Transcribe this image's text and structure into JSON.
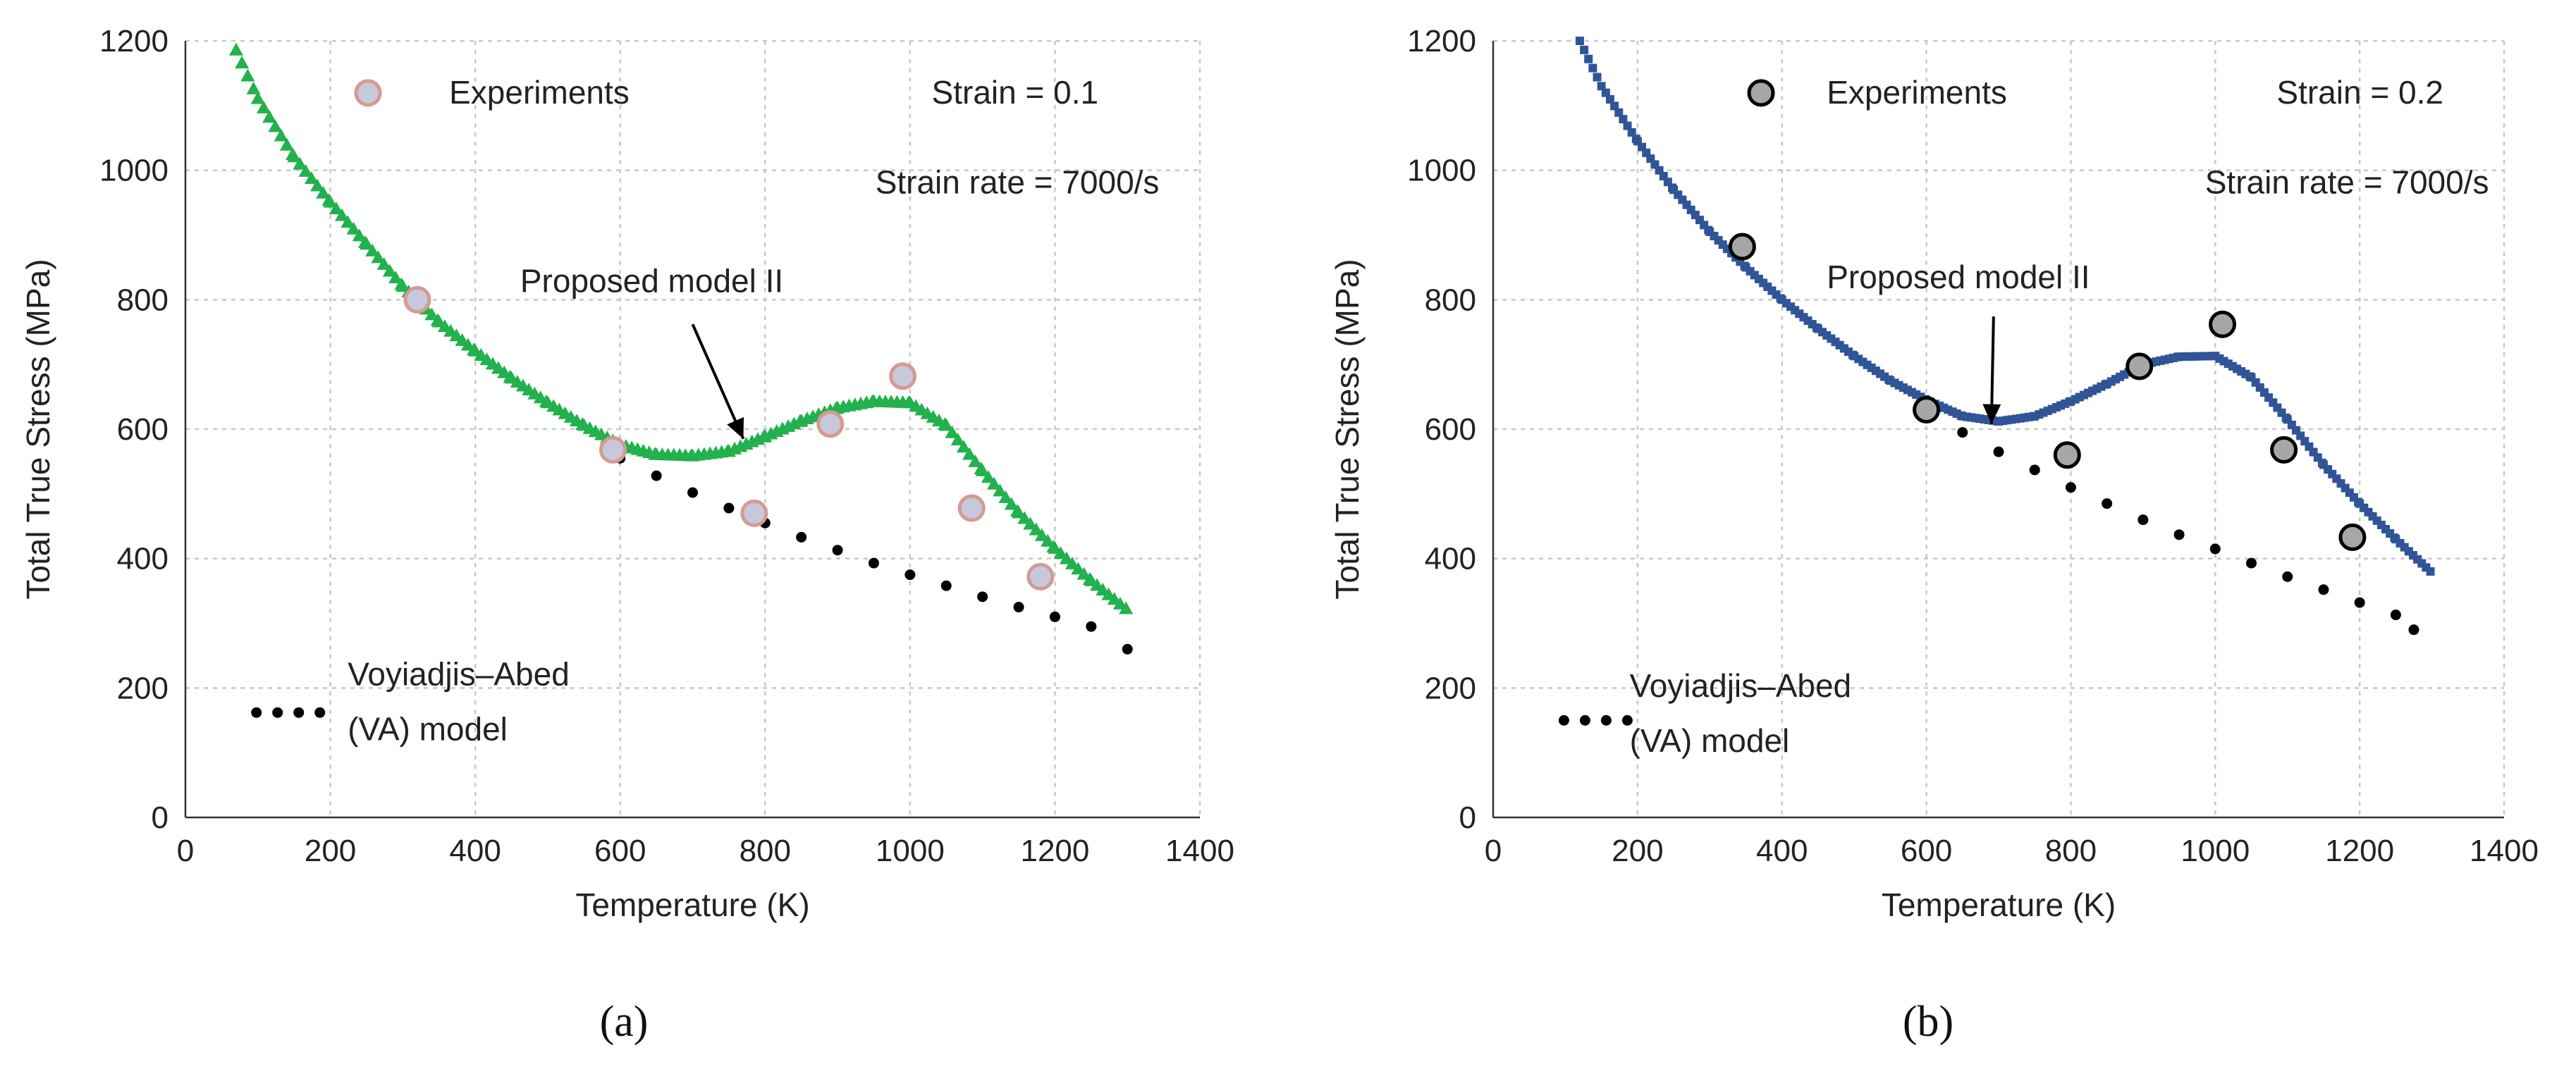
{
  "chart_data": [
    {
      "type": "scatter",
      "panel_label": "(a)",
      "xlabel": "Temperature (K)",
      "ylabel": "Total True Stress (MPa)",
      "xlim": [
        0,
        1400
      ],
      "ylim": [
        0,
        1200
      ],
      "x_ticks": [
        "0",
        "200",
        "400",
        "600",
        "800",
        "1000",
        "1200",
        "1400"
      ],
      "y_ticks": [
        "0",
        "200",
        "400",
        "600",
        "800",
        "1000",
        "1200"
      ],
      "grid": true,
      "annotations": {
        "strain": "Strain = 0.1",
        "strain_rate": "Strain rate = 7000/s",
        "model_label": "Proposed model II",
        "model_arrow_to": [
          770,
          585
        ]
      },
      "colors": {
        "model": "#22b14c",
        "experiments_fill": "#c8c8dc",
        "experiments_edge": "#d69a90",
        "va": "#000000"
      },
      "series": [
        {
          "name": "Experiments",
          "marker": "circle",
          "x": [
            320,
            590,
            785,
            890,
            990,
            1085,
            1180
          ],
          "y": [
            800,
            568,
            470,
            608,
            682,
            478,
            372
          ]
        },
        {
          "name": "Proposed model II",
          "marker": "triangle",
          "x": [
            70,
            100,
            150,
            200,
            250,
            300,
            350,
            400,
            450,
            500,
            550,
            600,
            650,
            700,
            750,
            800,
            850,
            900,
            950,
            1000,
            1050,
            1100,
            1150,
            1200,
            1250,
            1300
          ],
          "y": [
            1185,
            1110,
            1020,
            950,
            885,
            820,
            765,
            720,
            678,
            640,
            605,
            575,
            560,
            558,
            565,
            588,
            612,
            632,
            642,
            640,
            605,
            535,
            470,
            415,
            365,
            320
          ]
        },
        {
          "name": "Voyiadjis–Abed (VA) model",
          "legend_lines": [
            "Voyiadjis–Abed",
            "(VA) model"
          ],
          "marker": "dot",
          "x": [
            600,
            650,
            700,
            750,
            800,
            850,
            900,
            950,
            1000,
            1050,
            1100,
            1150,
            1200,
            1250,
            1300
          ],
          "y": [
            555,
            528,
            502,
            478,
            455,
            433,
            413,
            393,
            375,
            358,
            341,
            325,
            310,
            295,
            260
          ]
        }
      ]
    },
    {
      "type": "scatter",
      "panel_label": "(b)",
      "xlabel": "Temperature (K)",
      "ylabel": "Total True Stress (MPa)",
      "xlim": [
        0,
        1400
      ],
      "ylim": [
        0,
        1200
      ],
      "x_ticks": [
        "0",
        "200",
        "400",
        "600",
        "800",
        "1000",
        "1200",
        "1400"
      ],
      "y_ticks": [
        "0",
        "200",
        "400",
        "600",
        "800",
        "1000",
        "1200"
      ],
      "grid": true,
      "annotations": {
        "strain": "Strain = 0.2",
        "strain_rate": "Strain rate = 7000/s",
        "model_label": "Proposed model II",
        "model_arrow_to": [
          690,
          608
        ]
      },
      "colors": {
        "model": "#2f5597",
        "experiments_fill": "#a6a6a6",
        "experiments_edge": "#000000",
        "va": "#000000"
      },
      "series": [
        {
          "name": "Experiments",
          "marker": "circle",
          "x": [
            345,
            600,
            795,
            895,
            1010,
            1095,
            1190
          ],
          "y": [
            882,
            630,
            560,
            697,
            762,
            568,
            433
          ]
        },
        {
          "name": "Proposed model II",
          "marker": "square",
          "x": [
            120,
            150,
            200,
            250,
            300,
            350,
            400,
            450,
            500,
            550,
            600,
            650,
            700,
            750,
            800,
            850,
            900,
            950,
            1000,
            1050,
            1100,
            1150,
            1200,
            1250,
            1300
          ],
          "y": [
            1200,
            1130,
            1045,
            970,
            905,
            850,
            800,
            755,
            713,
            675,
            645,
            620,
            612,
            620,
            643,
            670,
            700,
            712,
            713,
            680,
            615,
            545,
            485,
            430,
            378
          ]
        },
        {
          "name": "Voyiadjis–Abed (VA) model",
          "legend_lines": [
            "Voyiadjis–Abed",
            "(VA) model"
          ],
          "marker": "dot",
          "x": [
            600,
            650,
            700,
            750,
            800,
            850,
            900,
            950,
            1000,
            1050,
            1100,
            1150,
            1200,
            1250,
            1275
          ],
          "y": [
            625,
            595,
            565,
            537,
            510,
            485,
            460,
            437,
            415,
            393,
            372,
            352,
            332,
            313,
            290
          ]
        }
      ]
    }
  ]
}
